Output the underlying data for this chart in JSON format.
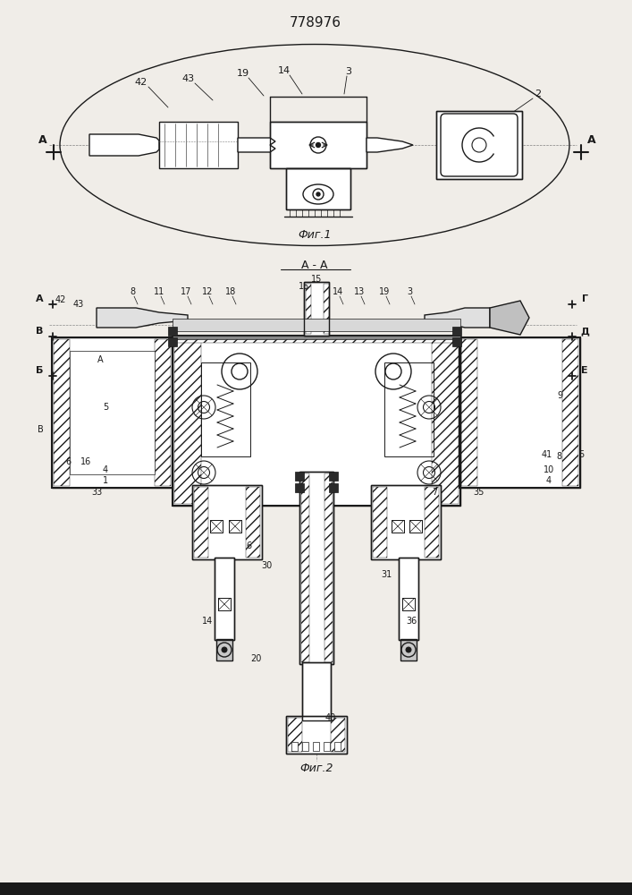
{
  "title": "778976",
  "fig1_caption": "Фиг.1",
  "fig2_caption": "Фиг.2",
  "section_label": "А - А",
  "bg_color": "#f0ede8",
  "line_color": "#1a1a1a",
  "font_size_title": 11,
  "font_size_labels": 8,
  "font_size_caption": 9
}
